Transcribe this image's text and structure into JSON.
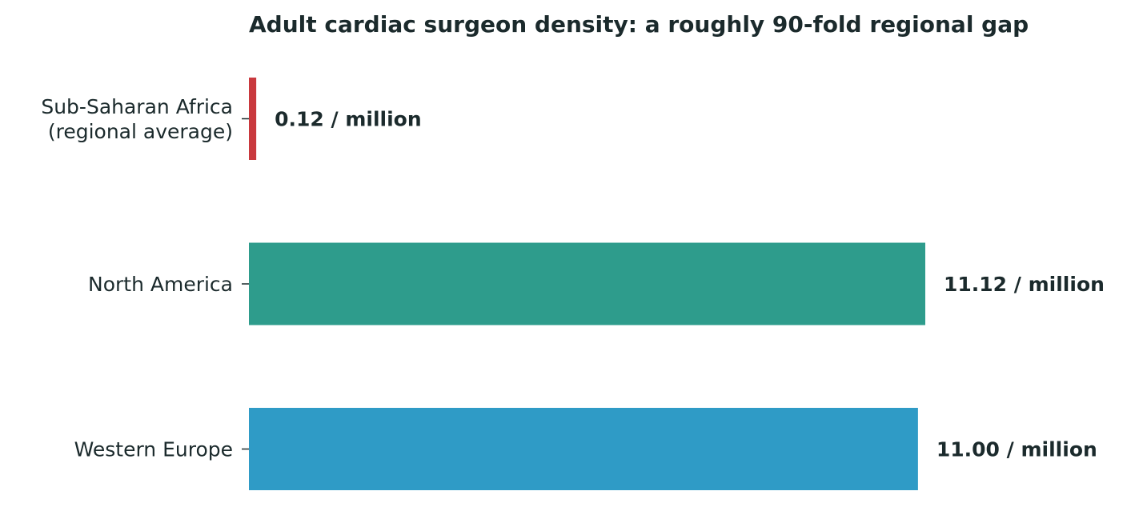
{
  "chart_data": {
    "type": "bar",
    "orientation": "horizontal",
    "title": "Adult cardiac surgeon density: a roughly 90-fold regional gap",
    "categories": [
      [
        "Sub-Saharan Africa",
        "(regional average)"
      ],
      [
        "North America"
      ],
      [
        "Western Europe"
      ]
    ],
    "values": [
      0.12,
      11.12,
      11.0
    ],
    "value_labels": [
      "0.12 / million",
      "11.12 / million",
      "11.00 / million"
    ],
    "colors": [
      "#c9393e",
      "#2e9c8c",
      "#2f9bc6"
    ],
    "xlabel": "",
    "ylabel": "",
    "xlim": [
      0,
      11.12
    ],
    "grid": false,
    "legend": "none"
  }
}
